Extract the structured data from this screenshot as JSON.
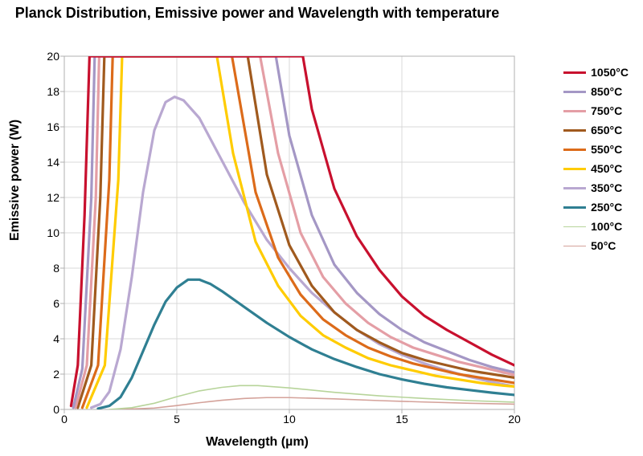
{
  "chart": {
    "type": "line",
    "title": "Planck Distribution, Emissive power and Wavelength with temperature",
    "title_fontsize": 18,
    "xlabel": "Wavelength (µm)",
    "ylabel": "Emissive power (W)",
    "label_fontsize": 16,
    "tick_fontsize": 14,
    "xlim": [
      0,
      20
    ],
    "ylim": [
      0,
      20
    ],
    "xticks": [
      0,
      5,
      10,
      15,
      20
    ],
    "yticks": [
      0,
      2,
      4,
      6,
      8,
      10,
      12,
      14,
      16,
      18,
      20
    ],
    "grid_color": "#d9d9d9",
    "axis_color": "#b0b0b0",
    "background_color": "#ffffff",
    "line_width": 3.2,
    "thin_line_width": 1.6,
    "legend_fontsize": 14,
    "legend_position": "right",
    "series": [
      {
        "label": "1050°C",
        "color": "#c8102e",
        "thin": false,
        "points": [
          [
            0.3,
            0.2
          ],
          [
            0.6,
            2.5
          ],
          [
            0.9,
            11.0
          ],
          [
            1.12,
            20.0
          ],
          [
            10.6,
            20.0
          ],
          [
            11.0,
            17.0
          ],
          [
            12.0,
            12.5
          ],
          [
            13.0,
            9.8
          ],
          [
            14.0,
            7.9
          ],
          [
            15.0,
            6.4
          ],
          [
            16.0,
            5.3
          ],
          [
            17.0,
            4.5
          ],
          [
            18.0,
            3.8
          ],
          [
            19.0,
            3.1
          ],
          [
            20.0,
            2.5
          ]
        ]
      },
      {
        "label": "850°C",
        "color": "#a497c5",
        "thin": false,
        "points": [
          [
            0.4,
            0.1
          ],
          [
            0.8,
            2.3
          ],
          [
            1.2,
            12.0
          ],
          [
            1.35,
            20.0
          ],
          [
            9.4,
            20.0
          ],
          [
            10.0,
            15.5
          ],
          [
            11.0,
            11.0
          ],
          [
            12.0,
            8.2
          ],
          [
            13.0,
            6.6
          ],
          [
            14.0,
            5.4
          ],
          [
            15.0,
            4.5
          ],
          [
            16.0,
            3.8
          ],
          [
            17.0,
            3.3
          ],
          [
            18.0,
            2.8
          ],
          [
            19.0,
            2.4
          ],
          [
            20.0,
            2.1
          ]
        ]
      },
      {
        "label": "750°C",
        "color": "#e49ea5",
        "thin": false,
        "points": [
          [
            0.5,
            0.1
          ],
          [
            1.0,
            2.5
          ],
          [
            1.4,
            12.0
          ],
          [
            1.55,
            20.0
          ],
          [
            8.7,
            20.0
          ],
          [
            9.5,
            14.5
          ],
          [
            10.5,
            10.0
          ],
          [
            11.5,
            7.5
          ],
          [
            12.5,
            6.0
          ],
          [
            13.5,
            4.9
          ],
          [
            14.5,
            4.1
          ],
          [
            15.5,
            3.5
          ],
          [
            16.5,
            3.1
          ],
          [
            17.5,
            2.7
          ],
          [
            18.5,
            2.4
          ],
          [
            19.5,
            2.1
          ],
          [
            20.0,
            1.95
          ]
        ]
      },
      {
        "label": "650°C",
        "color": "#a05a1e",
        "thin": false,
        "points": [
          [
            0.6,
            0.1
          ],
          [
            1.2,
            2.5
          ],
          [
            1.6,
            12.0
          ],
          [
            1.78,
            20.0
          ],
          [
            8.15,
            20.0
          ],
          [
            9.0,
            13.3
          ],
          [
            10.0,
            9.3
          ],
          [
            11.0,
            7.0
          ],
          [
            12.0,
            5.5
          ],
          [
            13.0,
            4.5
          ],
          [
            14.0,
            3.8
          ],
          [
            15.0,
            3.2
          ],
          [
            16.0,
            2.8
          ],
          [
            17.0,
            2.5
          ],
          [
            18.0,
            2.2
          ],
          [
            19.0,
            2.0
          ],
          [
            20.0,
            1.8
          ]
        ]
      },
      {
        "label": "550°C",
        "color": "#dc6b1a",
        "thin": false,
        "points": [
          [
            0.8,
            0.1
          ],
          [
            1.5,
            2.5
          ],
          [
            2.0,
            13.0
          ],
          [
            2.15,
            20.0
          ],
          [
            7.45,
            20.0
          ],
          [
            8.5,
            12.3
          ],
          [
            9.5,
            8.6
          ],
          [
            10.5,
            6.5
          ],
          [
            11.5,
            5.1
          ],
          [
            12.5,
            4.2
          ],
          [
            13.5,
            3.5
          ],
          [
            14.5,
            3.0
          ],
          [
            15.5,
            2.6
          ],
          [
            16.5,
            2.3
          ],
          [
            17.5,
            2.0
          ],
          [
            18.5,
            1.8
          ],
          [
            19.5,
            1.6
          ],
          [
            20.0,
            1.5
          ]
        ]
      },
      {
        "label": "450°C",
        "color": "#ffcc00",
        "thin": false,
        "points": [
          [
            1.0,
            0.1
          ],
          [
            1.8,
            2.5
          ],
          [
            2.4,
            13.0
          ],
          [
            2.57,
            20.0
          ],
          [
            6.78,
            20.0
          ],
          [
            7.5,
            14.5
          ],
          [
            8.5,
            9.5
          ],
          [
            9.5,
            7.0
          ],
          [
            10.5,
            5.3
          ],
          [
            11.5,
            4.2
          ],
          [
            12.5,
            3.5
          ],
          [
            13.5,
            2.9
          ],
          [
            14.5,
            2.5
          ],
          [
            15.5,
            2.2
          ],
          [
            16.5,
            1.9
          ],
          [
            17.5,
            1.7
          ],
          [
            18.5,
            1.5
          ],
          [
            19.5,
            1.35
          ],
          [
            20.0,
            1.3
          ]
        ]
      },
      {
        "label": "350°C",
        "color": "#b9a8d1",
        "thin": false,
        "points": [
          [
            1.2,
            0.1
          ],
          [
            1.6,
            0.3
          ],
          [
            2.0,
            1.0
          ],
          [
            2.5,
            3.4
          ],
          [
            3.0,
            7.5
          ],
          [
            3.5,
            12.3
          ],
          [
            4.0,
            15.8
          ],
          [
            4.5,
            17.4
          ],
          [
            4.9,
            17.7
          ],
          [
            5.3,
            17.5
          ],
          [
            6.0,
            16.5
          ],
          [
            7.0,
            14.1
          ],
          [
            8.0,
            11.7
          ],
          [
            9.0,
            9.6
          ],
          [
            10.0,
            8.0
          ],
          [
            11.0,
            6.6
          ],
          [
            12.0,
            5.5
          ],
          [
            13.0,
            4.5
          ],
          [
            14.0,
            3.7
          ],
          [
            15.0,
            3.1
          ],
          [
            16.0,
            2.6
          ],
          [
            17.0,
            2.2
          ],
          [
            18.0,
            1.85
          ],
          [
            19.0,
            1.55
          ],
          [
            20.0,
            1.3
          ]
        ]
      },
      {
        "label": "250°C",
        "color": "#2f7f92",
        "thin": false,
        "points": [
          [
            1.5,
            0.05
          ],
          [
            2.0,
            0.2
          ],
          [
            2.5,
            0.7
          ],
          [
            3.0,
            1.8
          ],
          [
            3.5,
            3.3
          ],
          [
            4.0,
            4.8
          ],
          [
            4.5,
            6.1
          ],
          [
            5.0,
            6.9
          ],
          [
            5.5,
            7.35
          ],
          [
            6.0,
            7.35
          ],
          [
            6.5,
            7.1
          ],
          [
            7.0,
            6.7
          ],
          [
            8.0,
            5.8
          ],
          [
            9.0,
            4.9
          ],
          [
            10.0,
            4.1
          ],
          [
            11.0,
            3.4
          ],
          [
            12.0,
            2.85
          ],
          [
            13.0,
            2.4
          ],
          [
            14.0,
            2.0
          ],
          [
            15.0,
            1.7
          ],
          [
            16.0,
            1.45
          ],
          [
            17.0,
            1.25
          ],
          [
            18.0,
            1.1
          ],
          [
            19.0,
            0.95
          ],
          [
            20.0,
            0.82
          ]
        ]
      },
      {
        "label": "100°C",
        "color": "#b7d49a",
        "thin": true,
        "points": [
          [
            2.0,
            0.0
          ],
          [
            3.0,
            0.1
          ],
          [
            4.0,
            0.35
          ],
          [
            5.0,
            0.72
          ],
          [
            6.0,
            1.05
          ],
          [
            7.0,
            1.25
          ],
          [
            7.8,
            1.35
          ],
          [
            8.6,
            1.35
          ],
          [
            10.0,
            1.22
          ],
          [
            12.0,
            0.97
          ],
          [
            14.0,
            0.77
          ],
          [
            16.0,
            0.62
          ],
          [
            18.0,
            0.5
          ],
          [
            20.0,
            0.41
          ]
        ]
      },
      {
        "label": "50°C",
        "color": "#d4a29a",
        "thin": true,
        "points": [
          [
            2.5,
            0.0
          ],
          [
            4.0,
            0.08
          ],
          [
            5.0,
            0.22
          ],
          [
            6.0,
            0.38
          ],
          [
            7.0,
            0.52
          ],
          [
            8.0,
            0.62
          ],
          [
            9.0,
            0.67
          ],
          [
            10.0,
            0.67
          ],
          [
            12.0,
            0.6
          ],
          [
            14.0,
            0.5
          ],
          [
            16.0,
            0.42
          ],
          [
            18.0,
            0.35
          ],
          [
            20.0,
            0.3
          ]
        ]
      }
    ]
  }
}
